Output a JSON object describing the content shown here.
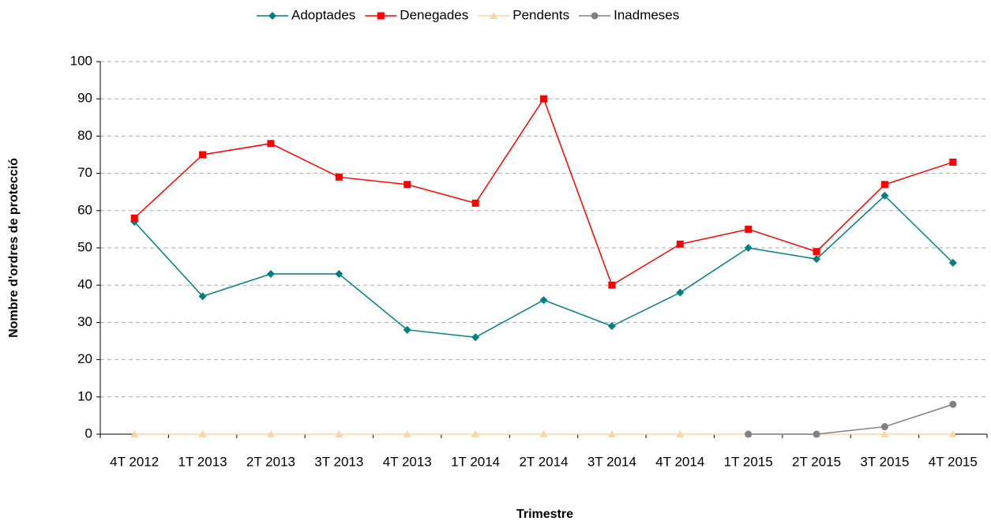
{
  "chart_data": {
    "type": "line",
    "y_label": "Nombre d'ordres de protecció",
    "x_label": "Trimestre",
    "categories": [
      "4T 2012",
      "1T 2013",
      "2T 2013",
      "3T 2013",
      "4T 2013",
      "1T 2014",
      "2T 2014",
      "3T 2014",
      "4T 2014",
      "1T 2015",
      "2T 2015",
      "3T 2015",
      "4T 2015"
    ],
    "series": [
      {
        "name": "Adoptades",
        "color": "#008080",
        "marker": "diamond",
        "values": [
          57,
          37,
          43,
          43,
          28,
          26,
          36,
          29,
          38,
          50,
          47,
          64,
          46
        ]
      },
      {
        "name": "Denegades",
        "color": "#ff0000",
        "marker": "square",
        "values": [
          58,
          75,
          78,
          69,
          67,
          62,
          90,
          40,
          51,
          55,
          49,
          67,
          73
        ]
      },
      {
        "name": "Pendents",
        "color": "#fcd5a0",
        "marker": "triangle",
        "values": [
          0,
          0,
          0,
          0,
          0,
          0,
          0,
          0,
          0,
          0,
          0,
          0,
          0
        ]
      },
      {
        "name": "Inadmeses",
        "color": "#808080",
        "marker": "circle",
        "values": [
          null,
          null,
          null,
          null,
          null,
          null,
          null,
          null,
          null,
          0,
          0,
          2,
          8
        ]
      }
    ],
    "ylim": [
      0,
      100
    ],
    "yticks": [
      0,
      10,
      20,
      30,
      40,
      50,
      60,
      70,
      80,
      90,
      100
    ],
    "grid": true,
    "legend": "top"
  }
}
